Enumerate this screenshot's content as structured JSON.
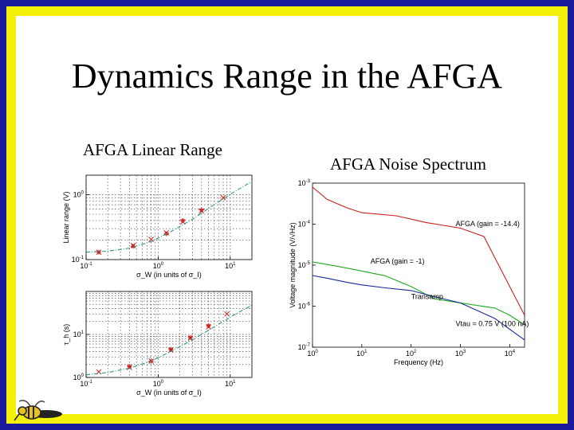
{
  "slide": {
    "title": "Dynamics Range in the AFGA",
    "left_caption": "AFGA Linear  Range",
    "right_caption": "AFGA  Noise Spectrum"
  },
  "colors": {
    "border_blue": "#1a1a9c",
    "border_yellow": "#f5f00a",
    "series_red": "#cc2020",
    "series_green": "#22aa22",
    "series_blue": "#1a2a9a",
    "fit_line": "#2a9a7a"
  },
  "chart_data": [
    {
      "type": "scatter",
      "title": "",
      "xlabel": "σ_W (in units of σ_I)",
      "ylabel": "Linear range (V)",
      "xscale": "log",
      "yscale": "log",
      "xlim": [
        0.1,
        20
      ],
      "ylim": [
        0.1,
        2
      ],
      "x_ticks": [
        "10^-1",
        "10^0",
        "10^1"
      ],
      "y_ticks": [
        "10^-1",
        "10^0"
      ],
      "grid": true,
      "series": [
        {
          "marker": "x",
          "color": "#cc2020",
          "points": [
            [
              0.15,
              0.13
            ],
            [
              0.45,
              0.165
            ],
            [
              0.8,
              0.205
            ],
            [
              1.3,
              0.26
            ],
            [
              2.2,
              0.38
            ],
            [
              4,
              0.56
            ],
            [
              8,
              0.9
            ]
          ]
        },
        {
          "marker": "*",
          "color": "#cc2020",
          "points": [
            [
              0.15,
              0.13
            ],
            [
              0.45,
              0.16
            ],
            [
              1.3,
              0.25
            ],
            [
              2.2,
              0.4
            ],
            [
              4,
              0.58
            ]
          ]
        },
        {
          "marker": "line",
          "style": "dashdot",
          "color": "#2a9a7a",
          "points": [
            [
              0.1,
              0.13
            ],
            [
              0.2,
              0.135
            ],
            [
              0.4,
              0.15
            ],
            [
              0.8,
              0.19
            ],
            [
              1.5,
              0.27
            ],
            [
              3,
              0.42
            ],
            [
              6,
              0.7
            ],
            [
              12,
              1.15
            ],
            [
              20,
              1.6
            ]
          ]
        }
      ]
    },
    {
      "type": "scatter",
      "title": "",
      "xlabel": "σ_W (in units of σ_I)",
      "ylabel": "τ_h (s)",
      "xscale": "log",
      "yscale": "log",
      "xlim": [
        0.1,
        20
      ],
      "ylim": [
        1,
        100
      ],
      "x_ticks": [
        "10^-1",
        "10^0",
        "10^1"
      ],
      "y_ticks": [
        "10^0",
        "10^1"
      ],
      "grid": true,
      "series": [
        {
          "marker": "x",
          "color": "#cc2020",
          "points": [
            [
              0.15,
              1.35
            ],
            [
              0.4,
              1.7
            ],
            [
              0.8,
              2.4
            ],
            [
              1.5,
              4.3
            ],
            [
              2.8,
              8.2
            ],
            [
              5,
              15
            ],
            [
              9,
              30
            ]
          ]
        },
        {
          "marker": "*",
          "color": "#cc2020",
          "points": [
            [
              0.4,
              1.8
            ],
            [
              0.8,
              2.4
            ],
            [
              1.5,
              4.5
            ],
            [
              2.8,
              8.5
            ],
            [
              5,
              16
            ]
          ]
        },
        {
          "marker": "line",
          "style": "dashdot",
          "color": "#2a9a7a",
          "points": [
            [
              0.1,
              1.15
            ],
            [
              0.2,
              1.3
            ],
            [
              0.4,
              1.65
            ],
            [
              0.8,
              2.4
            ],
            [
              1.5,
              4
            ],
            [
              3,
              7.5
            ],
            [
              6,
              15
            ],
            [
              12,
              30
            ],
            [
              20,
              48
            ]
          ]
        }
      ]
    },
    {
      "type": "line",
      "title": "",
      "xlabel": "Frequency (Hz)",
      "ylabel": "Voltage magnitude (V/√Hz)",
      "xscale": "log",
      "yscale": "log",
      "xlim": [
        1,
        20000
      ],
      "ylim": [
        1e-07,
        0.001
      ],
      "x_ticks": [
        "10^0",
        "10^1",
        "10^2",
        "10^3",
        "10^4"
      ],
      "y_ticks": [
        "10^-3",
        "10^-4",
        "10^-5",
        "10^-6",
        "10^-7"
      ],
      "grid": false,
      "annotations": [
        {
          "text": "AFGA (gain = -14.4)",
          "x": 800,
          "y": 9e-05
        },
        {
          "text": "AFGA (gain = -1)",
          "x": 15,
          "y": 1.1e-05
        },
        {
          "text": "Transamp",
          "x": 100,
          "y": 1.5e-06
        },
        {
          "text": "Vtau = 0.75 V (100 nA)",
          "x": 800,
          "y": 3.3e-07
        }
      ],
      "series": [
        {
          "name": "AFGA (gain = -14.4)",
          "color": "#cc2020",
          "points": [
            [
              1,
              0.0008
            ],
            [
              2,
              0.0004
            ],
            [
              5,
              0.00025
            ],
            [
              10,
              0.00019
            ],
            [
              50,
              0.00016
            ],
            [
              200,
              0.00011
            ],
            [
              1000,
              8e-05
            ],
            [
              3000,
              5e-05
            ],
            [
              10000,
              3e-06
            ],
            [
              20000,
              6e-07
            ]
          ]
        },
        {
          "name": "AFGA (gain = -1)",
          "color": "#22aa22",
          "points": [
            [
              1,
              1.2e-05
            ],
            [
              3,
              9.5e-06
            ],
            [
              10,
              7.2e-06
            ],
            [
              30,
              5.5e-06
            ],
            [
              100,
              3e-06
            ],
            [
              300,
              1.5e-06
            ],
            [
              1000,
              1.2e-06
            ],
            [
              5000,
              9e-07
            ],
            [
              10000,
              6e-07
            ],
            [
              20000,
              3.5e-07
            ]
          ]
        },
        {
          "name": "Transamp",
          "color": "#1a2a9a",
          "points": [
            [
              1,
              5.6e-06
            ],
            [
              2,
              4.8e-06
            ],
            [
              5,
              3.8e-06
            ],
            [
              10,
              3.3e-06
            ],
            [
              30,
              2.8e-06
            ],
            [
              100,
              2.4e-06
            ],
            [
              300,
              1.7e-06
            ],
            [
              1000,
              1.2e-06
            ],
            [
              5000,
              5e-07
            ],
            [
              20000,
              1.5e-07
            ]
          ]
        }
      ]
    }
  ]
}
